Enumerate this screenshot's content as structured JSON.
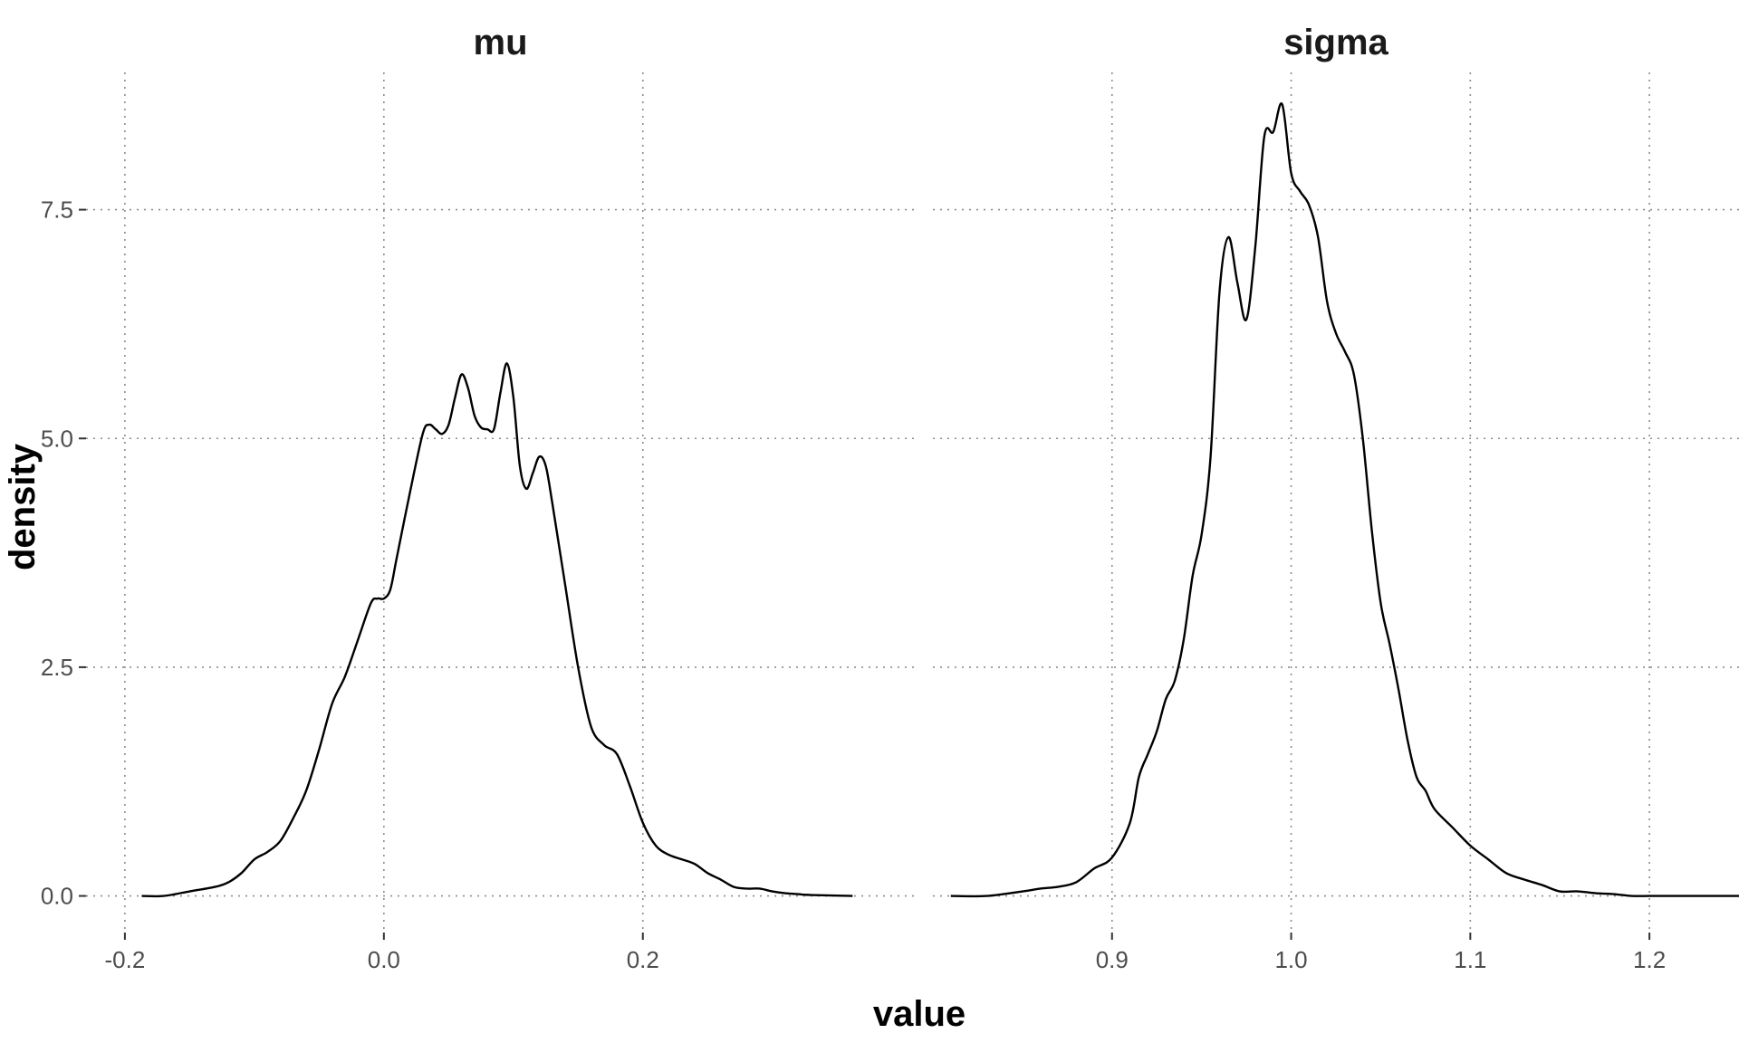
{
  "chart_data": {
    "type": "line",
    "xlabel": "value",
    "ylabel": "density",
    "ylim": [
      -0.4,
      9.0
    ],
    "yticks": [
      0.0,
      2.5,
      5.0,
      7.5
    ],
    "ytick_labels": [
      "0.0",
      "2.5",
      "5.0",
      "7.5"
    ],
    "grid": true,
    "grid_style": "dotted",
    "line_color": "#000000",
    "panels": [
      {
        "title": "mu",
        "xlim": [
          -0.23,
          0.41
        ],
        "xticks": [
          -0.2,
          0.0,
          0.2
        ],
        "xtick_labels": [
          "-0.2",
          "0.0",
          "0.2"
        ],
        "series": [
          {
            "x": [
              -0.187,
              -0.17,
              -0.15,
              -0.13,
              -0.12,
              -0.11,
              -0.1,
              -0.09,
              -0.08,
              -0.07,
              -0.06,
              -0.05,
              -0.04,
              -0.03,
              -0.02,
              -0.01,
              -0.005,
              0.0,
              0.005,
              0.01,
              0.02,
              0.03,
              0.035,
              0.04,
              0.045,
              0.05,
              0.055,
              0.06,
              0.065,
              0.07,
              0.075,
              0.08,
              0.085,
              0.09,
              0.095,
              0.1,
              0.105,
              0.11,
              0.115,
              0.12,
              0.125,
              0.13,
              0.14,
              0.15,
              0.16,
              0.17,
              0.18,
              0.19,
              0.2,
              0.21,
              0.22,
              0.23,
              0.24,
              0.25,
              0.26,
              0.27,
              0.28,
              0.29,
              0.3,
              0.31,
              0.32,
              0.33,
              0.362
            ],
            "y": [
              0.0,
              0.0,
              0.05,
              0.1,
              0.15,
              0.25,
              0.4,
              0.48,
              0.6,
              0.85,
              1.15,
              1.6,
              2.1,
              2.4,
              2.8,
              3.2,
              3.25,
              3.25,
              3.35,
              3.7,
              4.4,
              5.05,
              5.15,
              5.1,
              5.05,
              5.15,
              5.45,
              5.7,
              5.55,
              5.25,
              5.12,
              5.1,
              5.1,
              5.5,
              5.82,
              5.45,
              4.7,
              4.45,
              4.62,
              4.8,
              4.7,
              4.3,
              3.4,
              2.5,
              1.85,
              1.65,
              1.55,
              1.2,
              0.8,
              0.55,
              0.45,
              0.4,
              0.35,
              0.25,
              0.18,
              0.1,
              0.08,
              0.08,
              0.05,
              0.03,
              0.02,
              0.01,
              0.0
            ]
          }
        ]
      },
      {
        "title": "sigma",
        "xlim": [
          0.8,
          1.25
        ],
        "xticks": [
          0.9,
          1.0,
          1.1,
          1.2
        ],
        "xtick_labels": [
          "0.9",
          "1.0",
          "1.1",
          "1.2"
        ],
        "series": [
          {
            "x": [
              0.81,
              0.83,
              0.85,
              0.86,
              0.87,
              0.88,
              0.89,
              0.9,
              0.91,
              0.915,
              0.92,
              0.925,
              0.93,
              0.935,
              0.94,
              0.945,
              0.95,
              0.955,
              0.96,
              0.965,
              0.97,
              0.975,
              0.98,
              0.985,
              0.99,
              0.995,
              1.0,
              1.005,
              1.01,
              1.015,
              1.02,
              1.025,
              1.03,
              1.035,
              1.04,
              1.045,
              1.05,
              1.055,
              1.06,
              1.065,
              1.07,
              1.075,
              1.08,
              1.09,
              1.1,
              1.11,
              1.12,
              1.13,
              1.14,
              1.15,
              1.16,
              1.17,
              1.18,
              1.19,
              1.2,
              1.21,
              1.22,
              1.23,
              1.25
            ],
            "y": [
              0.0,
              0.0,
              0.05,
              0.08,
              0.1,
              0.15,
              0.3,
              0.42,
              0.8,
              1.3,
              1.55,
              1.8,
              2.15,
              2.35,
              2.8,
              3.5,
              3.95,
              4.8,
              6.6,
              7.2,
              6.7,
              6.3,
              7.1,
              8.3,
              8.35,
              8.65,
              7.9,
              7.7,
              7.55,
              7.2,
              6.5,
              6.15,
              5.95,
              5.7,
              5.0,
              4.0,
              3.2,
              2.75,
              2.25,
              1.7,
              1.3,
              1.15,
              0.95,
              0.75,
              0.55,
              0.4,
              0.25,
              0.18,
              0.12,
              0.05,
              0.05,
              0.03,
              0.02,
              0.0,
              0.0,
              0.0,
              0.0,
              0.0,
              0.0
            ]
          }
        ]
      }
    ]
  }
}
